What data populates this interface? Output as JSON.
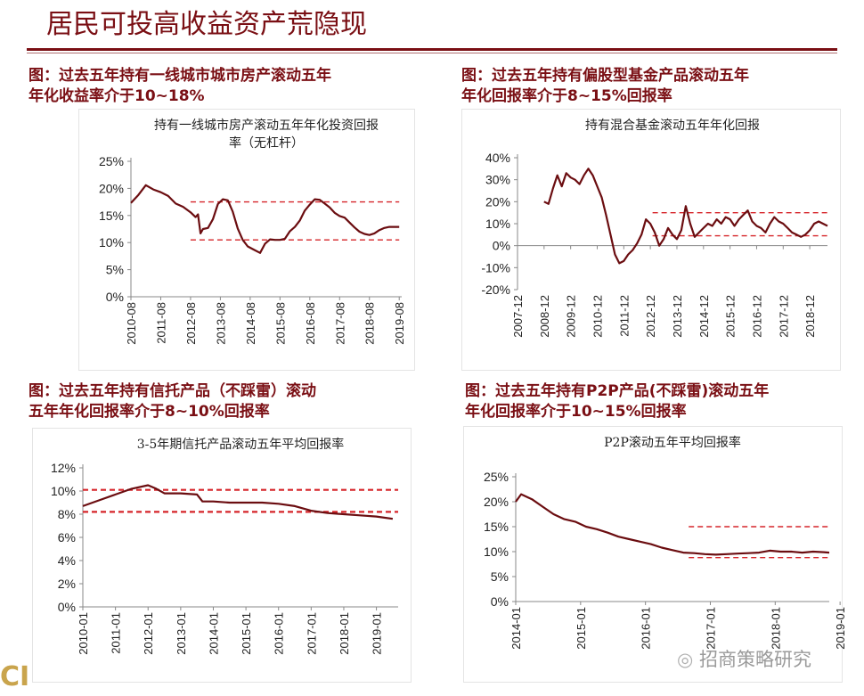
{
  "page": {
    "title": "居民可投高收益资产荒隐现",
    "watermark": "招商策略研究",
    "footer_logo": "CI",
    "colors": {
      "accent": "#7a0f14",
      "line": "#6b0d10",
      "ref_line": "#d6252a"
    }
  },
  "captions": [
    "图：过去五年持有一线城市城市房产滚动五年\n年化收益率介于10~18%",
    "图：过去五年持有偏股型基金产品滚动五年\n年化回报率介于8~15%回报率",
    "图：过去五年持有信托产品（不踩雷）滚动\n五年年化回报率介于8~10%回报率",
    "图：过去五年持有P2P产品(不踩雷)滚动五年\n年化回报率介于10~15%回报率"
  ],
  "chart_data": [
    {
      "type": "line",
      "title": "持有一线城市房产滚动五年年化投资回报\n率（无杠杆）",
      "ylim": [
        0,
        25
      ],
      "yticks": [
        0,
        5,
        10,
        15,
        20,
        25
      ],
      "ytick_format": "percent",
      "grid": false,
      "xlim": [
        0,
        109
      ],
      "x_tick_labels": [
        "2010-08",
        "2011-08",
        "2012-08",
        "2013-08",
        "2014-08",
        "2015-08",
        "2016-08",
        "2017-08",
        "2018-08",
        "2019-08"
      ],
      "x_tick_positions": [
        0,
        12,
        24,
        36,
        48,
        60,
        72,
        84,
        96,
        108
      ],
      "series": [
        {
          "x": [
            0,
            3,
            6,
            9,
            12,
            15,
            18,
            21,
            24,
            26,
            27,
            28,
            29,
            31,
            33,
            35,
            37,
            39,
            41,
            43,
            45,
            47,
            49,
            52,
            54,
            56,
            58,
            60,
            62,
            64,
            66,
            68,
            70,
            72,
            74,
            76,
            78,
            80,
            82,
            84,
            86,
            88,
            90,
            92,
            94,
            96,
            98,
            100,
            102,
            104,
            106,
            108
          ],
          "values": [
            17.3,
            18.8,
            20.6,
            19.8,
            19.3,
            18.6,
            17.2,
            16.6,
            15.6,
            14.7,
            15.2,
            11.7,
            12.5,
            12.7,
            14.3,
            17.1,
            18.0,
            17.8,
            15.7,
            12.6,
            10.5,
            9.3,
            8.8,
            8.1,
            9.8,
            10.6,
            10.5,
            10.5,
            10.7,
            12.1,
            12.9,
            14.1,
            15.9,
            17.0,
            18.0,
            17.9,
            17.2,
            16.5,
            15.5,
            14.9,
            14.6,
            13.7,
            12.8,
            12.0,
            11.6,
            11.4,
            11.7,
            12.3,
            12.7,
            12.9,
            12.9,
            12.9
          ]
        }
      ],
      "reference_lines": [
        {
          "y": 17.5,
          "x_range": [
            24,
            108
          ]
        },
        {
          "y": 10.5,
          "x_range": [
            24,
            108
          ]
        }
      ]
    },
    {
      "type": "line",
      "title": "持有混合基金滚动五年年化回报",
      "ylim": [
        -20,
        40
      ],
      "yticks": [
        -20,
        -10,
        0,
        10,
        20,
        30,
        40
      ],
      "ytick_format": "percent",
      "grid": false,
      "xlim": [
        0,
        140
      ],
      "x_tick_labels": [
        "2007-12",
        "2008-12",
        "2009-12",
        "2010-12",
        "2011-12",
        "2012-12",
        "2013-12",
        "2014-12",
        "2015-12",
        "2016-12",
        "2017-12",
        "2018-12"
      ],
      "x_tick_positions": [
        0,
        12,
        24,
        36,
        48,
        60,
        72,
        84,
        96,
        108,
        120,
        132
      ],
      "series": [
        {
          "x": [
            12,
            14,
            16,
            18,
            20,
            22,
            24,
            26,
            28,
            30,
            32,
            34,
            36,
            38,
            40,
            42,
            44,
            46,
            48,
            50,
            52,
            54,
            56,
            58,
            60,
            62,
            64,
            66,
            68,
            70,
            72,
            74,
            76,
            78,
            80,
            82,
            84,
            86,
            88,
            90,
            92,
            94,
            96,
            98,
            100,
            102,
            104,
            106,
            108,
            110,
            112,
            114,
            116,
            118,
            120,
            122,
            124,
            126,
            128,
            130,
            132,
            134,
            136,
            138,
            140
          ],
          "values": [
            20,
            19,
            26,
            32,
            27,
            33,
            31,
            30,
            28,
            32,
            35,
            32,
            27,
            22,
            14,
            5,
            -4,
            -8,
            -7,
            -4,
            -2,
            1,
            5,
            12,
            10,
            6,
            0,
            3,
            8,
            5,
            3,
            7,
            18,
            10,
            4,
            6,
            8,
            10,
            9,
            12,
            10,
            13,
            12,
            9,
            12,
            14,
            16,
            11,
            9,
            8,
            6,
            10,
            13,
            11,
            10,
            8,
            6,
            5,
            4,
            5,
            7,
            10,
            11,
            10,
            9
          ]
        }
      ],
      "reference_lines": [
        {
          "y": 15,
          "x_range": [
            61,
            140
          ]
        },
        {
          "y": 4.5,
          "x_range": [
            61,
            140
          ]
        }
      ]
    },
    {
      "type": "line",
      "title": "3-5年期信托产品滚动五年平均回报率",
      "ylim": [
        0,
        12
      ],
      "yticks": [
        0,
        2,
        4,
        6,
        8,
        10,
        12
      ],
      "ytick_format": "percent",
      "grid": false,
      "xlim": [
        0,
        116
      ],
      "x_tick_labels": [
        "2010-01",
        "2011-01",
        "2012-01",
        "2013-01",
        "2014-01",
        "2015-01",
        "2016-01",
        "2017-01",
        "2018-01",
        "2019-01"
      ],
      "x_tick_positions": [
        0,
        12,
        24,
        36,
        48,
        60,
        72,
        84,
        96,
        108
      ],
      "series": [
        {
          "x": [
            0,
            6,
            12,
            18,
            24,
            27,
            30,
            36,
            42,
            44,
            48,
            54,
            60,
            66,
            72,
            78,
            84,
            90,
            96,
            102,
            108,
            114
          ],
          "values": [
            8.7,
            9.2,
            9.7,
            10.2,
            10.5,
            10.2,
            9.8,
            9.8,
            9.7,
            9.1,
            9.1,
            9.0,
            9.0,
            9.0,
            8.9,
            8.7,
            8.3,
            8.1,
            8.0,
            7.9,
            7.8,
            7.6
          ]
        }
      ],
      "reference_lines": [
        {
          "y": 10.1,
          "x_range": [
            0,
            116
          ]
        },
        {
          "y": 8.2,
          "x_range": [
            0,
            116
          ]
        }
      ]
    },
    {
      "type": "line",
      "title": "P2P滚动五年平均回报率",
      "ylim": [
        0,
        25
      ],
      "yticks": [
        0,
        5,
        10,
        15,
        20,
        25
      ],
      "ytick_format": "percent",
      "grid": false,
      "xlim": [
        0,
        58
      ],
      "x_tick_labels": [
        "2014-01",
        "2015-01",
        "2016-01",
        "2017-01",
        "2018-01",
        "2019-01"
      ],
      "x_tick_positions": [
        0,
        12,
        24,
        36,
        48,
        60
      ],
      "series": [
        {
          "x": [
            0,
            1,
            3,
            5,
            7,
            9,
            11,
            13,
            15,
            17,
            19,
            21,
            23,
            25,
            27,
            29,
            31,
            33,
            35,
            37,
            39,
            41,
            43,
            45,
            47,
            49,
            51,
            53,
            55,
            57,
            58
          ],
          "values": [
            20,
            21.5,
            20.5,
            19,
            17.5,
            16.5,
            16,
            15,
            14.5,
            13.8,
            13,
            12.5,
            12,
            11.5,
            10.8,
            10.3,
            9.8,
            9.7,
            9.5,
            9.4,
            9.5,
            9.6,
            9.7,
            9.8,
            10.2,
            10.0,
            10.0,
            9.8,
            10.0,
            9.9,
            9.8
          ]
        }
      ],
      "reference_lines": [
        {
          "y": 15,
          "x_range": [
            32,
            58
          ]
        },
        {
          "y": 8.8,
          "x_range": [
            32,
            58
          ]
        }
      ]
    }
  ]
}
